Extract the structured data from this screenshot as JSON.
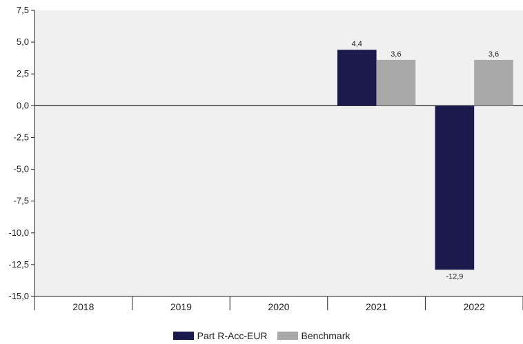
{
  "chart_data": {
    "type": "bar",
    "categories": [
      "2018",
      "2019",
      "2020",
      "2021",
      "2022"
    ],
    "series": [
      {
        "name": "Part R-Acc-EUR",
        "color": "#1b1a4d",
        "values": [
          null,
          null,
          null,
          4.4,
          -12.9
        ],
        "labels": [
          "",
          "",
          "",
          "4,4",
          "-12,9"
        ]
      },
      {
        "name": "Benchmark",
        "color": "#a8a8a8",
        "values": [
          null,
          null,
          null,
          3.6,
          3.6
        ],
        "labels": [
          "",
          "",
          "",
          "3,6",
          "3,6"
        ]
      }
    ],
    "ylim": [
      -15,
      7.5
    ],
    "yticks": [
      7.5,
      5.0,
      2.5,
      0.0,
      -2.5,
      -5.0,
      -7.5,
      -10.0,
      -12.5,
      -15.0
    ],
    "ytick_labels": [
      "7,5",
      "5,0",
      "2,5",
      "0,0",
      "-2,5",
      "-5,0",
      "-7,5",
      "-10,0",
      "-12,5",
      "-15,0"
    ],
    "background": "#f0f0f0",
    "legend_position": "bottom-center"
  }
}
